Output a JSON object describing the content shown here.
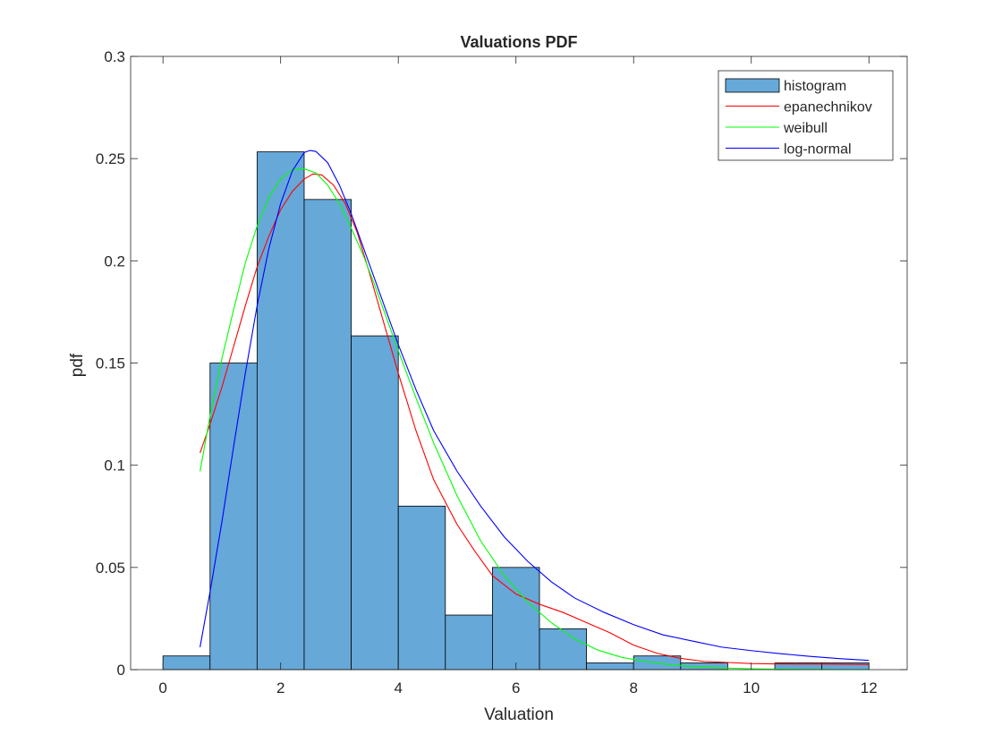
{
  "chart_data": {
    "type": "bar",
    "title": "Valuations PDF",
    "xlabel": "Valuation",
    "ylabel": "pdf",
    "xlim": [
      -0.55,
      12.65
    ],
    "ylim": [
      0,
      0.3
    ],
    "xticks": [
      0,
      2,
      4,
      6,
      8,
      10,
      12
    ],
    "yticks": [
      0,
      0.05,
      0.1,
      0.15,
      0.2,
      0.25,
      0.3
    ],
    "xtick_labels": [
      "0",
      "2",
      "4",
      "6",
      "8",
      "10",
      "12"
    ],
    "ytick_labels": [
      "0",
      "0.05",
      "0.1",
      "0.15",
      "0.2",
      "0.25",
      "0.3"
    ],
    "grid": false,
    "legend_position": "top-right",
    "histogram": {
      "name": "histogram",
      "color": "#66A8D8",
      "edges": [
        0.0,
        0.8,
        1.6,
        2.4,
        3.2,
        4.0,
        4.8,
        5.6,
        6.4,
        7.2,
        8.0,
        8.8,
        9.6,
        10.4,
        11.2,
        12.0
      ],
      "values": [
        0.0067,
        0.15,
        0.2533,
        0.23,
        0.1633,
        0.08,
        0.0267,
        0.05,
        0.02,
        0.0033,
        0.0067,
        0.0033,
        0.0,
        0.0033,
        0.0033
      ]
    },
    "series": [
      {
        "name": "epanechnikov",
        "color": "#ff0000",
        "x": [
          0.63,
          0.8,
          1.0,
          1.2,
          1.4,
          1.6,
          1.8,
          2.0,
          2.2,
          2.4,
          2.55,
          2.7,
          2.9,
          3.1,
          3.3,
          3.5,
          3.7,
          4.0,
          4.3,
          4.6,
          5.0,
          5.3,
          5.6,
          6.0,
          6.4,
          6.8,
          7.2,
          7.6,
          8.0,
          8.4,
          8.8,
          9.2,
          9.6,
          10.0,
          10.4,
          10.8,
          11.2,
          11.6,
          12.0
        ],
        "y": [
          0.106,
          0.12,
          0.138,
          0.158,
          0.178,
          0.197,
          0.212,
          0.225,
          0.234,
          0.24,
          0.2425,
          0.242,
          0.237,
          0.228,
          0.214,
          0.195,
          0.175,
          0.145,
          0.117,
          0.093,
          0.071,
          0.058,
          0.046,
          0.037,
          0.032,
          0.028,
          0.023,
          0.018,
          0.012,
          0.008,
          0.0055,
          0.004,
          0.0035,
          0.003,
          0.0028,
          0.0027,
          0.0027,
          0.0026,
          0.0025
        ]
      },
      {
        "name": "weibull",
        "color": "#00ff00",
        "x": [
          0.63,
          0.8,
          1.0,
          1.2,
          1.4,
          1.6,
          1.8,
          2.0,
          2.2,
          2.4,
          2.6,
          2.8,
          3.0,
          3.2,
          3.4,
          3.6,
          3.8,
          4.0,
          4.3,
          4.6,
          5.0,
          5.4,
          5.8,
          6.2,
          6.6,
          7.0,
          7.4,
          7.8,
          8.2,
          8.6,
          9.0,
          9.5,
          10.0,
          10.5,
          11.0,
          11.5,
          12.0
        ],
        "y": [
          0.097,
          0.124,
          0.152,
          0.176,
          0.199,
          0.217,
          0.231,
          0.24,
          0.2445,
          0.245,
          0.243,
          0.237,
          0.228,
          0.216,
          0.203,
          0.188,
          0.172,
          0.156,
          0.133,
          0.111,
          0.085,
          0.063,
          0.046,
          0.033,
          0.023,
          0.015,
          0.0095,
          0.006,
          0.004,
          0.0025,
          0.0015,
          0.0008,
          0.0004,
          0.0002,
          0.0001,
          0.0,
          0.0
        ]
      },
      {
        "name": "log-normal",
        "color": "#0000ff",
        "x": [
          0.63,
          0.8,
          1.0,
          1.2,
          1.4,
          1.6,
          1.8,
          2.0,
          2.2,
          2.4,
          2.5,
          2.6,
          2.8,
          3.0,
          3.2,
          3.4,
          3.6,
          3.8,
          4.0,
          4.3,
          4.6,
          5.0,
          5.4,
          5.8,
          6.2,
          6.6,
          7.0,
          7.5,
          8.0,
          8.5,
          9.0,
          9.5,
          10.0,
          10.5,
          11.0,
          11.5,
          12.0
        ],
        "y": [
          0.011,
          0.038,
          0.072,
          0.109,
          0.145,
          0.178,
          0.206,
          0.228,
          0.244,
          0.253,
          0.254,
          0.2535,
          0.248,
          0.237,
          0.223,
          0.207,
          0.191,
          0.175,
          0.159,
          0.137,
          0.117,
          0.097,
          0.08,
          0.065,
          0.053,
          0.043,
          0.035,
          0.028,
          0.022,
          0.017,
          0.014,
          0.011,
          0.0093,
          0.0078,
          0.0065,
          0.0054,
          0.0045
        ]
      }
    ]
  }
}
